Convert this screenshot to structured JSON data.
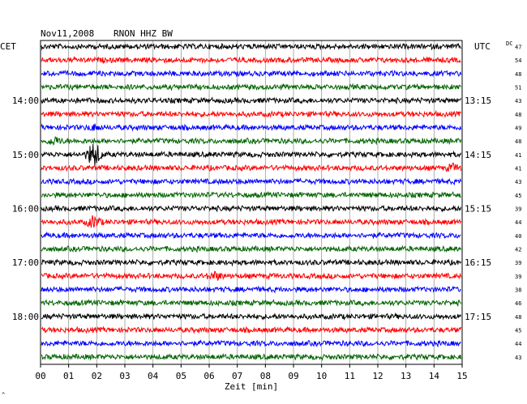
{
  "header": {
    "date": "Nov11,2008",
    "station": "RNON HHZ BW",
    "left_zone": "CET",
    "right_zone": "UTC",
    "dc_label": "DC"
  },
  "footer": {
    "xlabel": "Zeit [min]",
    "corner_mark": "^"
  },
  "colors": {
    "cycle": [
      "#000000",
      "#ff0000",
      "#0000ff",
      "#006400"
    ],
    "grid": "#9a9a9a",
    "frame": "#000000",
    "text": "#000000"
  },
  "chart_data": {
    "type": "line",
    "subtype": "helicorder",
    "title": "Nov11,2008   RNON HHZ BW",
    "xlabel": "Zeit [min]",
    "xlim": [
      0,
      15
    ],
    "x_ticks": [
      "00",
      "01",
      "02",
      "03",
      "04",
      "05",
      "06",
      "07",
      "08",
      "09",
      "10",
      "11",
      "12",
      "13",
      "14",
      "15"
    ],
    "trace_minutes": 15,
    "trace_count": 24,
    "color_cycle": [
      "black",
      "red",
      "blue",
      "green"
    ],
    "left_time_labels": [
      {
        "trace": 4,
        "label": "14:00"
      },
      {
        "trace": 8,
        "label": "15:00"
      },
      {
        "trace": 12,
        "label": "16:00"
      },
      {
        "trace": 16,
        "label": "17:00"
      },
      {
        "trace": 20,
        "label": "18:00"
      }
    ],
    "right_time_labels": [
      {
        "trace": 4,
        "label": "13:15"
      },
      {
        "trace": 8,
        "label": "14:15"
      },
      {
        "trace": 12,
        "label": "15:15"
      },
      {
        "trace": 16,
        "label": "16:15"
      },
      {
        "trace": 20,
        "label": "17:15"
      }
    ],
    "dc_offsets": [
      47,
      54,
      48,
      51,
      43,
      48,
      49,
      48,
      41,
      41,
      43,
      45,
      39,
      44,
      40,
      42,
      39,
      39,
      38,
      46,
      48,
      45,
      44,
      43
    ],
    "events": [
      {
        "trace": 8,
        "minute": 1.9,
        "relative_amplitude": 3.0
      },
      {
        "trace": 13,
        "minute": 1.9,
        "relative_amplitude": 1.3
      },
      {
        "trace": 9,
        "minute": 14.7,
        "relative_amplitude": 0.7
      },
      {
        "trace": 17,
        "minute": 6.2,
        "relative_amplitude": 0.8
      },
      {
        "trace": 7,
        "minute": 0.5,
        "relative_amplitude": 0.8
      },
      {
        "trace": 6,
        "minute": 1.9,
        "relative_amplitude": 0.5
      }
    ]
  }
}
